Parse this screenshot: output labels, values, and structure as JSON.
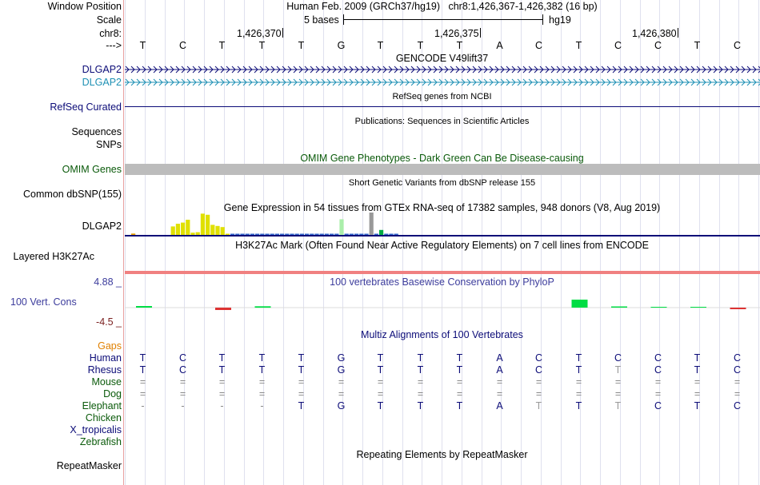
{
  "header": {
    "window_position_label": "Window Position",
    "window_position_value": "Human Feb. 2009 (GRCh37/hg19)   chr8:1,426,367-1,426,382 (16 bp)",
    "scale_label": "Scale",
    "scale_text": "5 bases",
    "scale_assembly": "hg19",
    "chrom_label": "chr8:",
    "positions": [
      "1,426,370",
      "1,426,375",
      "1,426,380"
    ],
    "strand_label": "--->",
    "bases": [
      "T",
      "C",
      "T",
      "T",
      "T",
      "G",
      "T",
      "T",
      "T",
      "A",
      "C",
      "T",
      "C",
      "C",
      "T",
      "C"
    ]
  },
  "tracks": {
    "gencode_title": "GENCODE V49lift37",
    "gencode_rows": [
      {
        "label": "DLGAP2",
        "color": "#0c0c78"
      },
      {
        "label": "DLGAP2",
        "color": "#1e90b4"
      }
    ],
    "refseq_title": "RefSeq genes from NCBI",
    "refseq_label": "RefSeq Curated",
    "pubs_title": "Publications: Sequences in Scientific Articles",
    "sequences_label": "Sequences",
    "snps_label": "SNPs",
    "omim_title": "OMIM Gene Phenotypes - Dark Green Can Be Disease-causing",
    "omim_label": "OMIM Genes",
    "dbsnp_title": "Short Genetic Variants from dbSNP release 155",
    "dbsnp_label": "Common dbSNP(155)",
    "gtex_title": "Gene Expression in 54 tissues from GTEx RNA-seq of 17382 samples, 948 donors (V8, Aug 2019)",
    "gtex_label": "DLGAP2",
    "gtex_bars": [
      {
        "h": 0.06,
        "c": "#e8a000"
      },
      {
        "h": 0.0,
        "c": "#e8a000"
      },
      {
        "h": 0.0,
        "c": "#888"
      },
      {
        "h": 0.0,
        "c": "#888"
      },
      {
        "h": 0.0,
        "c": "#888"
      },
      {
        "h": 0.0,
        "c": "#888"
      },
      {
        "h": 0.0,
        "c": "#888"
      },
      {
        "h": 0.0,
        "c": "#888"
      },
      {
        "h": 0.38,
        "c": "#e0e000"
      },
      {
        "h": 0.5,
        "c": "#e0e000"
      },
      {
        "h": 0.55,
        "c": "#e0e000"
      },
      {
        "h": 0.68,
        "c": "#e0e000"
      },
      {
        "h": 0.1,
        "c": "#e0e000"
      },
      {
        "h": 0.12,
        "c": "#e0e000"
      },
      {
        "h": 0.95,
        "c": "#e0e000"
      },
      {
        "h": 0.9,
        "c": "#e0e000"
      },
      {
        "h": 0.45,
        "c": "#e0e000"
      },
      {
        "h": 0.4,
        "c": "#e0e000"
      },
      {
        "h": 0.35,
        "c": "#e0e000"
      },
      {
        "h": 0.05,
        "c": "#e0e000"
      },
      {
        "h": 0.04,
        "c": "#3366cc"
      },
      {
        "h": 0.03,
        "c": "#3366cc"
      },
      {
        "h": 0.02,
        "c": "#3366cc"
      },
      {
        "h": 0.02,
        "c": "#3366cc"
      },
      {
        "h": 0.02,
        "c": "#3366cc"
      },
      {
        "h": 0.03,
        "c": "#3366cc"
      },
      {
        "h": 0.02,
        "c": "#3366cc"
      },
      {
        "h": 0.02,
        "c": "#3366cc"
      },
      {
        "h": 0.02,
        "c": "#3366cc"
      },
      {
        "h": 0.02,
        "c": "#3366cc"
      },
      {
        "h": 0.02,
        "c": "#3366cc"
      },
      {
        "h": 0.02,
        "c": "#3366cc"
      },
      {
        "h": 0.02,
        "c": "#3366cc"
      },
      {
        "h": 0.02,
        "c": "#3366cc"
      },
      {
        "h": 0.02,
        "c": "#3366cc"
      },
      {
        "h": 0.02,
        "c": "#3366cc"
      },
      {
        "h": 0.02,
        "c": "#3366cc"
      },
      {
        "h": 0.02,
        "c": "#3366cc"
      },
      {
        "h": 0.02,
        "c": "#3366cc"
      },
      {
        "h": 0.02,
        "c": "#3366cc"
      },
      {
        "h": 0.02,
        "c": "#3366cc"
      },
      {
        "h": 0.02,
        "c": "#3366cc"
      },
      {
        "h": 0.7,
        "c": "#aaeeaa"
      },
      {
        "h": 0.03,
        "c": "#3366cc"
      },
      {
        "h": 0.03,
        "c": "#3366cc"
      },
      {
        "h": 0.02,
        "c": "#3366cc"
      },
      {
        "h": 0.02,
        "c": "#3366cc"
      },
      {
        "h": 0.02,
        "c": "#3366cc"
      },
      {
        "h": 1.0,
        "c": "#999999"
      },
      {
        "h": 0.02,
        "c": "#3366cc"
      },
      {
        "h": 0.22,
        "c": "#00aa44"
      },
      {
        "h": 0.02,
        "c": "#3366cc"
      },
      {
        "h": 0.02,
        "c": "#3366cc"
      },
      {
        "h": 0.02,
        "c": "#3366cc"
      }
    ],
    "h3k27ac_title": "H3K27Ac Mark (Often Found Near Active Regulatory Elements) on 7 cell lines from ENCODE",
    "h3k27ac_label": "Layered H3K27Ac",
    "phylop_title": "100 vertebrates Basewise Conservation by PhyloP",
    "phylop_label": "100 Vert. Cons",
    "phylop_max": "4.88 _",
    "phylop_min": "-4.5 _",
    "phylop_scores": [
      0.4,
      0,
      -0.6,
      0.35,
      0,
      0,
      0,
      0,
      0,
      0,
      0,
      2.0,
      0.3,
      0.2,
      0.2,
      -0.4
    ],
    "multiz_title": "Multiz Alignments of 100 Vertebrates",
    "gaps_label": "Gaps",
    "alignments": [
      {
        "species": "Human",
        "color": "#0c0c78",
        "bases": [
          "T",
          "C",
          "T",
          "T",
          "T",
          "G",
          "T",
          "T",
          "T",
          "A",
          "C",
          "T",
          "C",
          "C",
          "T",
          "C"
        ]
      },
      {
        "species": "Rhesus",
        "color": "#0c0c78",
        "bases": [
          "T",
          "C",
          "T",
          "T",
          "T",
          "G",
          "T",
          "T",
          "T",
          "A",
          "C",
          "T",
          "T",
          "C",
          "T",
          "C"
        ]
      },
      {
        "species": "Mouse",
        "color": "#0a5a0a",
        "bases": [
          "=",
          "=",
          "=",
          "=",
          "=",
          "=",
          "=",
          "=",
          "=",
          "=",
          "=",
          "=",
          "=",
          "=",
          "=",
          "="
        ]
      },
      {
        "species": "Dog",
        "color": "#0a5a0a",
        "bases": [
          "=",
          "=",
          "=",
          "=",
          "=",
          "=",
          "=",
          "=",
          "=",
          "=",
          "=",
          "=",
          "=",
          "=",
          "=",
          "="
        ]
      },
      {
        "species": "Elephant",
        "color": "#0a5a0a",
        "bases": [
          "-",
          "-",
          "-",
          "-",
          "T",
          "G",
          "T",
          "T",
          "T",
          "A",
          "T",
          "T",
          "T",
          "C",
          "T",
          "C"
        ]
      },
      {
        "species": "Chicken",
        "color": "#0a5a0a",
        "bases": []
      },
      {
        "species": "X_tropicalis",
        "color": "#0c0c78",
        "bases": []
      },
      {
        "species": "Zebrafish",
        "color": "#0a5a0a",
        "bases": []
      }
    ],
    "repeat_title": "Repeating Elements by RepeatMasker",
    "repeat_label": "RepeatMasker"
  },
  "colors": {
    "navy": "#0c0c78",
    "teal": "#1e90b4",
    "omim_green": "#0a5a0a",
    "phylop_blue": "#3c3c9c",
    "phylop_brown": "#7a1f1f",
    "gaps_orange": "#e08000",
    "h3k27_red": "#f08080"
  }
}
